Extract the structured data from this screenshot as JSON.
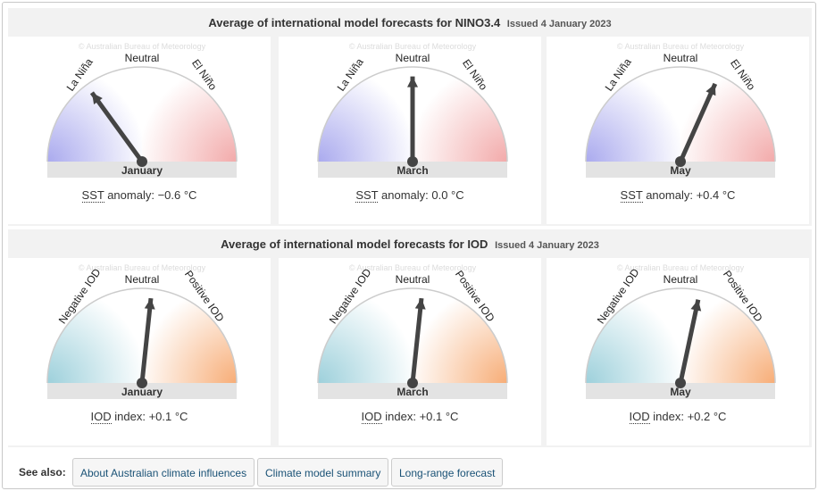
{
  "nino": {
    "title": "Average of international model forecasts for NINO3.4",
    "issued": "Issued 4 January 2023",
    "labels": {
      "left": "La Niña",
      "top": "Neutral",
      "right": "El Niño"
    },
    "caption_abbr": "SST",
    "caption_rest": " anomaly: ",
    "colors": {
      "left": "#aaaaee",
      "right": "#f2aaaa"
    },
    "gauges": [
      {
        "month": "January",
        "value": -0.6,
        "value_text": "−0.6 °C"
      },
      {
        "month": "March",
        "value": 0.0,
        "value_text": "0.0 °C"
      },
      {
        "month": "May",
        "value": 0.4,
        "value_text": "+0.4 °C"
      }
    ]
  },
  "iod": {
    "title": "Average of international model forecasts for IOD",
    "issued": "Issued 4 January 2023",
    "labels": {
      "left": "Negative IOD",
      "top": "Neutral",
      "right": "Positive IOD"
    },
    "caption_abbr": "IOD",
    "caption_rest": " index: ",
    "colors": {
      "left": "#9dd0db",
      "right": "#f7ad77"
    },
    "gauges": [
      {
        "month": "January",
        "value": 0.1,
        "value_text": "+0.1 °C"
      },
      {
        "month": "March",
        "value": 0.1,
        "value_text": "+0.1 °C"
      },
      {
        "month": "May",
        "value": 0.2,
        "value_text": "+0.2 °C"
      }
    ]
  },
  "see_also": {
    "label": "See also:",
    "links": [
      "About Australian climate influences",
      "Climate model summary",
      "Long-range forecast"
    ]
  }
}
